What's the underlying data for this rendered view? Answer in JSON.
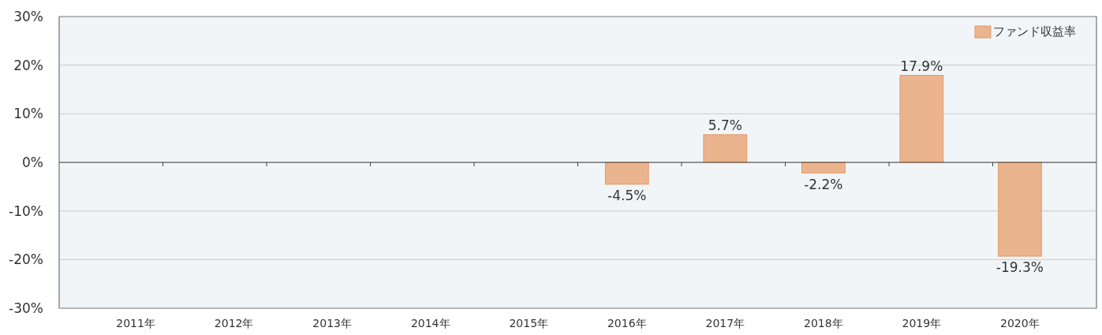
{
  "chart_data": {
    "type": "bar",
    "categories": [
      "2011年",
      "2012年",
      "2013年",
      "2014年",
      "2015年",
      "2016年",
      "2017年",
      "2018年",
      "2019年",
      "2020年"
    ],
    "series": [
      {
        "name": "ファンド収益率",
        "color": "#eab48f",
        "values": [
          null,
          null,
          null,
          null,
          null,
          -4.5,
          5.7,
          -2.2,
          17.9,
          -19.3
        ]
      }
    ],
    "ylim": [
      -30,
      30
    ],
    "yticks": [
      {
        "value": -30,
        "label": "-30%"
      },
      {
        "value": -20,
        "label": "-20%"
      },
      {
        "value": -10,
        "label": "-10%"
      },
      {
        "value": 0,
        "label": "0%"
      },
      {
        "value": 10,
        "label": "10%"
      },
      {
        "value": 20,
        "label": "20%"
      },
      {
        "value": 30,
        "label": "30%"
      }
    ],
    "value_labels": [
      null,
      null,
      null,
      null,
      null,
      "-4.5%",
      "5.7%",
      "-2.2%",
      "17.9%",
      "-19.3%"
    ],
    "grid": "y",
    "legend": "top right"
  }
}
